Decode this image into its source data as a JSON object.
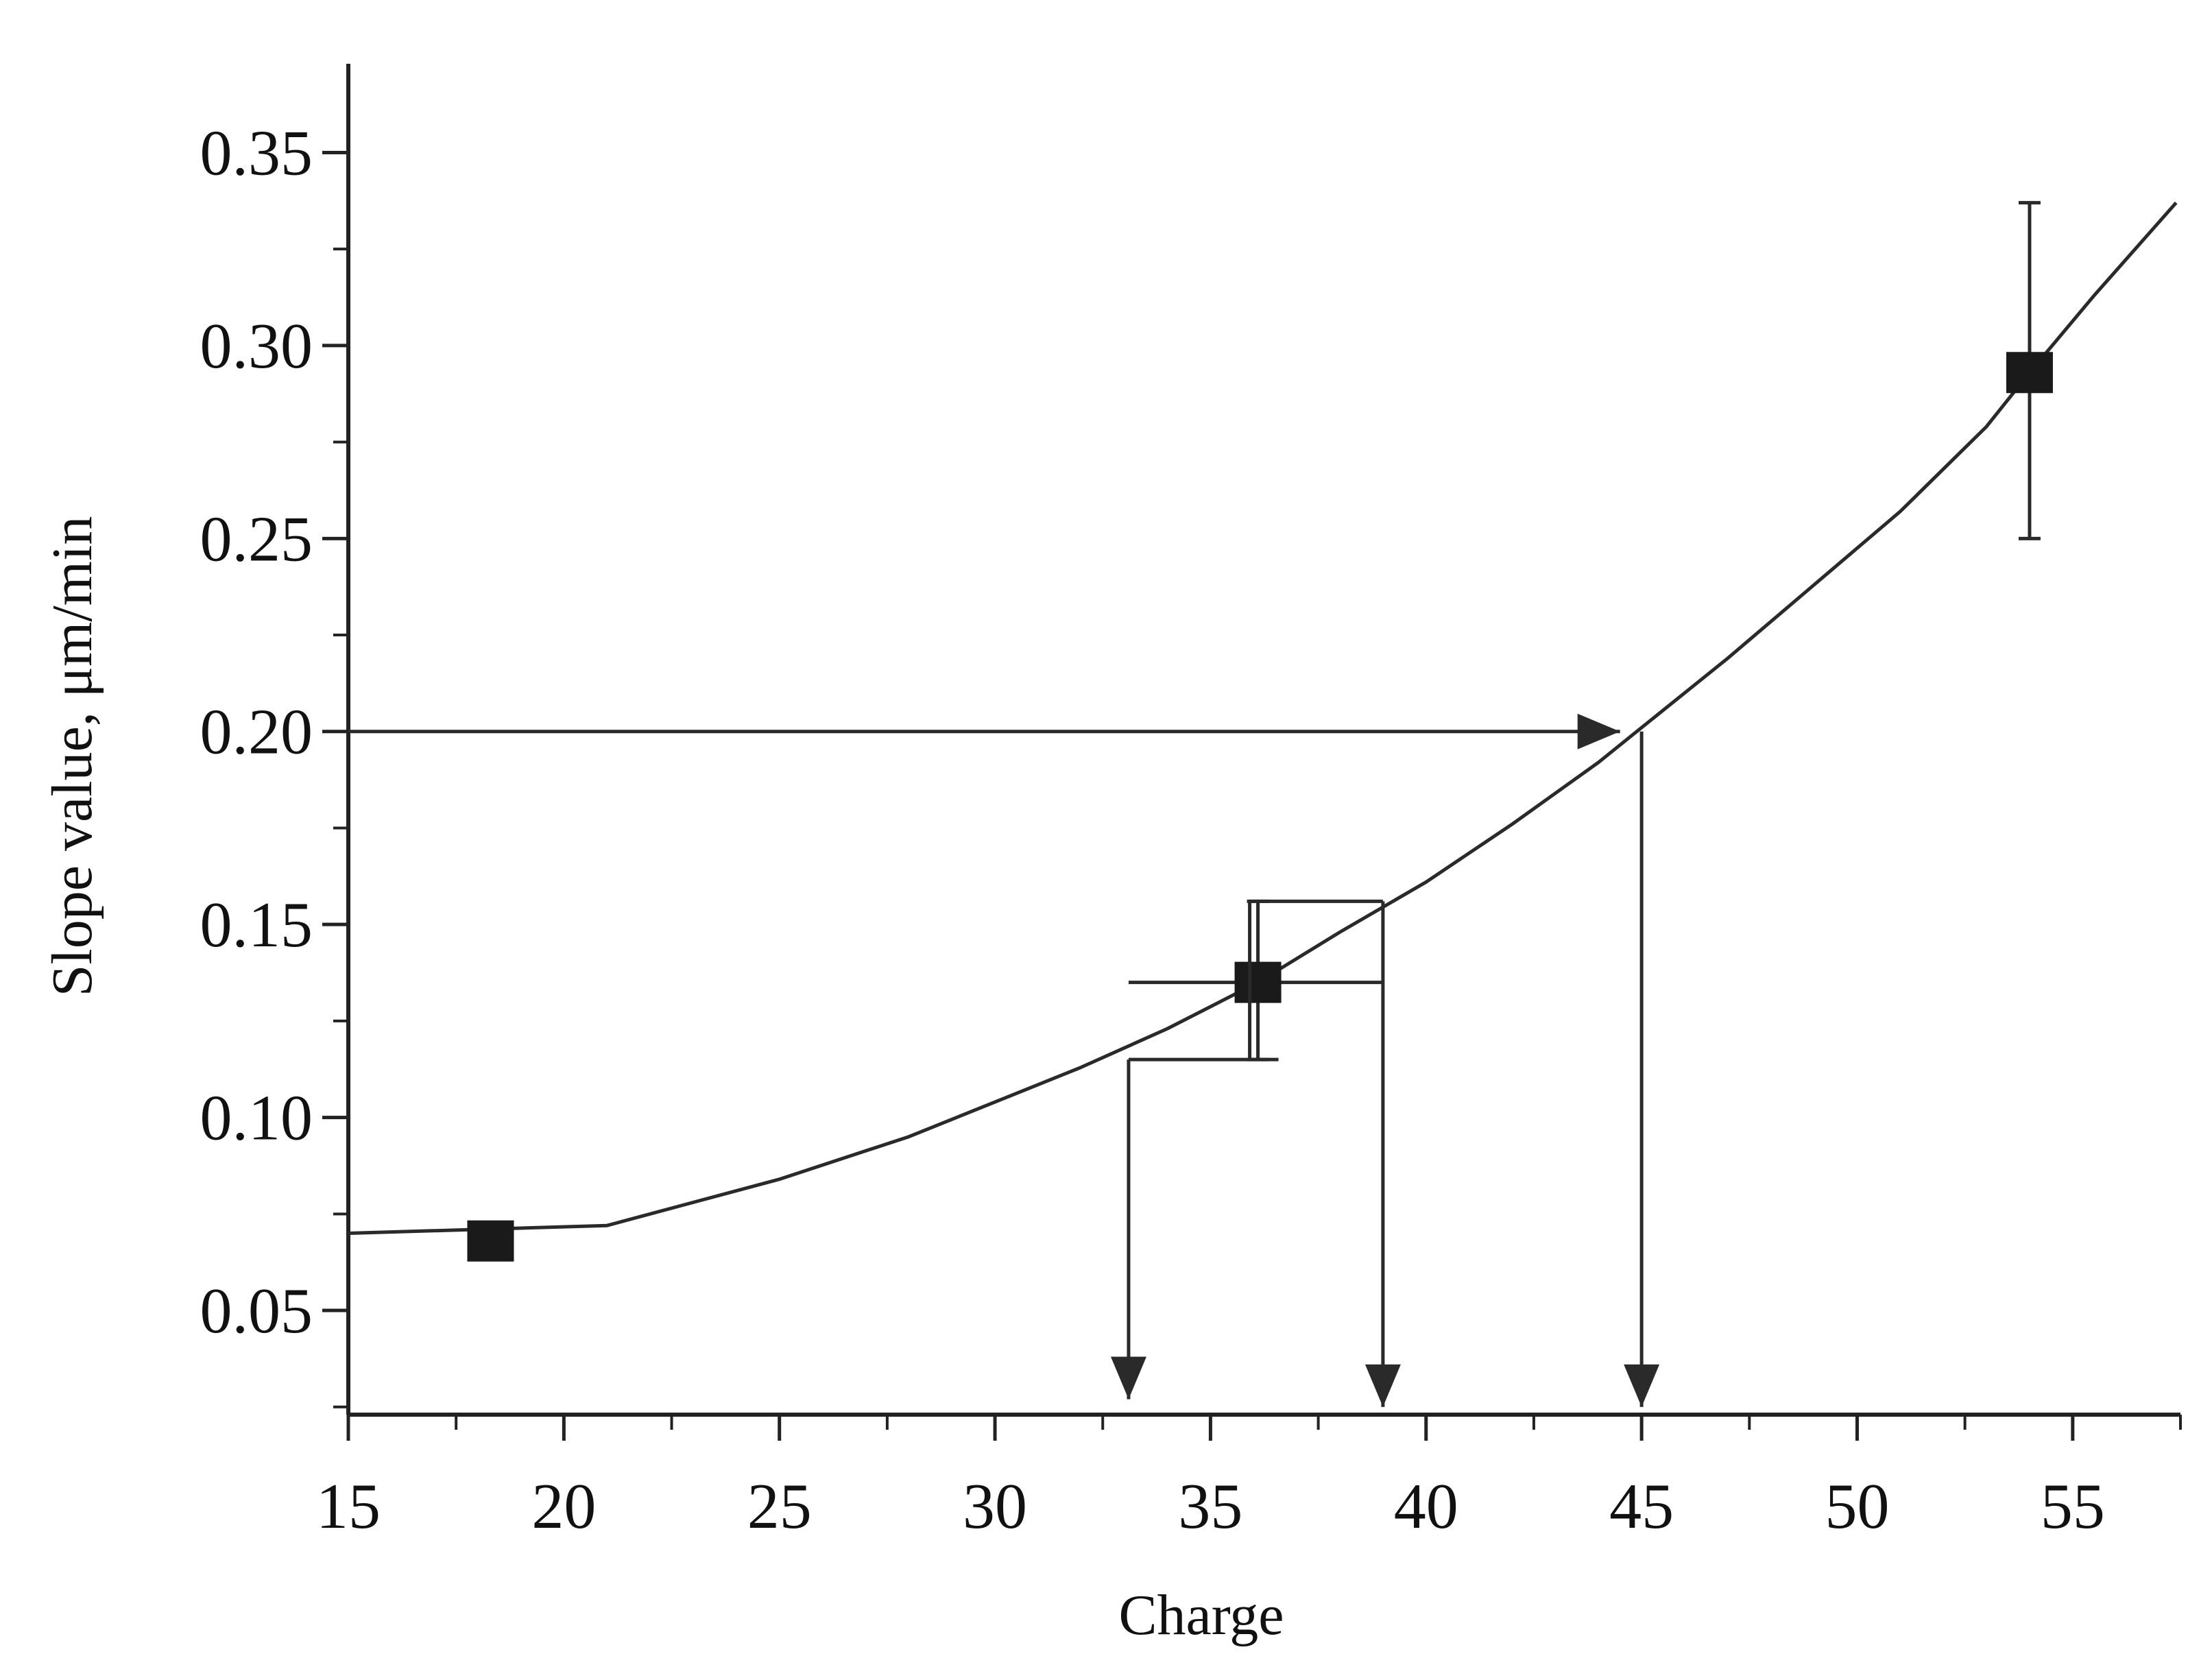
{
  "chart_data": {
    "type": "scatter",
    "xlabel": "Charge",
    "ylabel": "Slope value, μm/min",
    "xlim": [
      15,
      57.5
    ],
    "ylim": [
      0.023,
      0.373
    ],
    "x_ticks": [
      "15",
      "20",
      "25",
      "30",
      "35",
      "40",
      "45",
      "50",
      "55"
    ],
    "x_tick_values": [
      15,
      20,
      25,
      30,
      35,
      40,
      45,
      50,
      55
    ],
    "y_ticks": [
      "0.05",
      "0.10",
      "0.15",
      "0.20",
      "0.25",
      "0.30",
      "0.35"
    ],
    "y_tick_values": [
      0.05,
      0.1,
      0.15,
      0.2,
      0.25,
      0.3,
      0.35
    ],
    "grid": false,
    "series": [
      {
        "points": [
          {
            "x": 18.3,
            "y": 0.068
          },
          {
            "x": 36.1,
            "y": 0.135,
            "x_err": [
              33.1,
              39.0
            ],
            "y_err": [
              0.115,
              0.156
            ]
          },
          {
            "x": 54.0,
            "y": 0.293,
            "y_err": [
              0.25,
              0.337
            ]
          }
        ]
      }
    ],
    "fit_curve": [
      [
        15.0,
        0.07
      ],
      [
        21.0,
        0.072
      ],
      [
        25.0,
        0.084
      ],
      [
        28.0,
        0.095
      ],
      [
        30.0,
        0.104
      ],
      [
        32.0,
        0.113
      ],
      [
        34.0,
        0.123
      ],
      [
        36.1,
        0.135
      ],
      [
        38.0,
        0.148
      ],
      [
        40.0,
        0.161
      ],
      [
        42.0,
        0.176
      ],
      [
        44.0,
        0.192
      ],
      [
        45.0,
        0.201
      ],
      [
        47.0,
        0.219
      ],
      [
        49.0,
        0.238
      ],
      [
        51.0,
        0.257
      ],
      [
        53.0,
        0.279
      ],
      [
        54.0,
        0.293
      ],
      [
        55.5,
        0.313
      ],
      [
        57.4,
        0.337
      ]
    ],
    "annotations": [
      {
        "type": "arrow",
        "from": {
          "x": 15,
          "y": 0.2
        },
        "to": {
          "x": 44.5,
          "y": 0.2
        }
      },
      {
        "type": "arrow",
        "from": {
          "x": 45.0,
          "y": 0.2
        },
        "to": {
          "x": 45.0,
          "y": 0.025
        }
      },
      {
        "type": "arrow",
        "from": {
          "x": 39.0,
          "y": 0.156
        },
        "to": {
          "x": 39.0,
          "y": 0.025
        }
      },
      {
        "type": "arrow",
        "from": {
          "x": 33.1,
          "y": 0.115
        },
        "to": {
          "x": 33.1,
          "y": 0.027
        }
      }
    ],
    "colors": {
      "line": "#2a2a2a",
      "marker": "#1a1a1a",
      "axis": "#222222"
    }
  }
}
